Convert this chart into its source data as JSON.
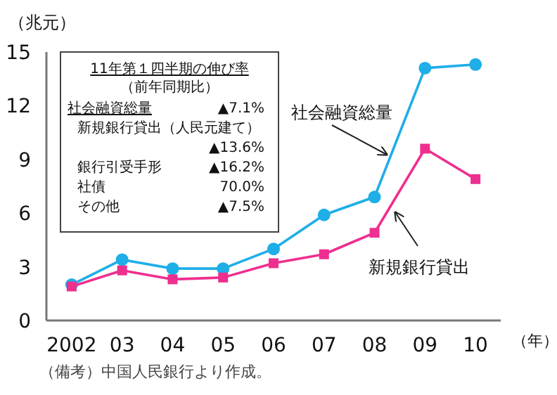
{
  "chart_data": {
    "type": "line",
    "ylabel": "（兆元）",
    "xlabel": "（年）",
    "categories": [
      "2002",
      "03",
      "04",
      "05",
      "06",
      "07",
      "08",
      "09",
      "10"
    ],
    "series": [
      {
        "name": "社会融資総量",
        "color": "#1eaee8",
        "marker": "circle",
        "values": [
          2.0,
          3.4,
          2.9,
          2.9,
          4.0,
          5.9,
          6.9,
          14.1,
          14.3
        ]
      },
      {
        "name": "新規銀行貸出",
        "color": "#ee2f8f",
        "marker": "square",
        "values": [
          1.9,
          2.8,
          2.3,
          2.4,
          3.2,
          3.7,
          4.9,
          9.6,
          7.9
        ]
      }
    ],
    "ylim": [
      0,
      15
    ],
    "yticks": [
      0,
      3,
      6,
      9,
      12,
      15
    ],
    "annotations": [
      "11年第１四半期の伸び率",
      "（前年同期比）",
      "社会融資総量",
      "▲7.1%",
      "新規銀行貸出（人民元建て）",
      "▲13.6%",
      "銀行引受手形",
      "▲16.2%",
      "社債",
      "70.0%",
      "その他",
      "▲7.5%",
      "（備考）中国人民銀行より作成。"
    ]
  }
}
